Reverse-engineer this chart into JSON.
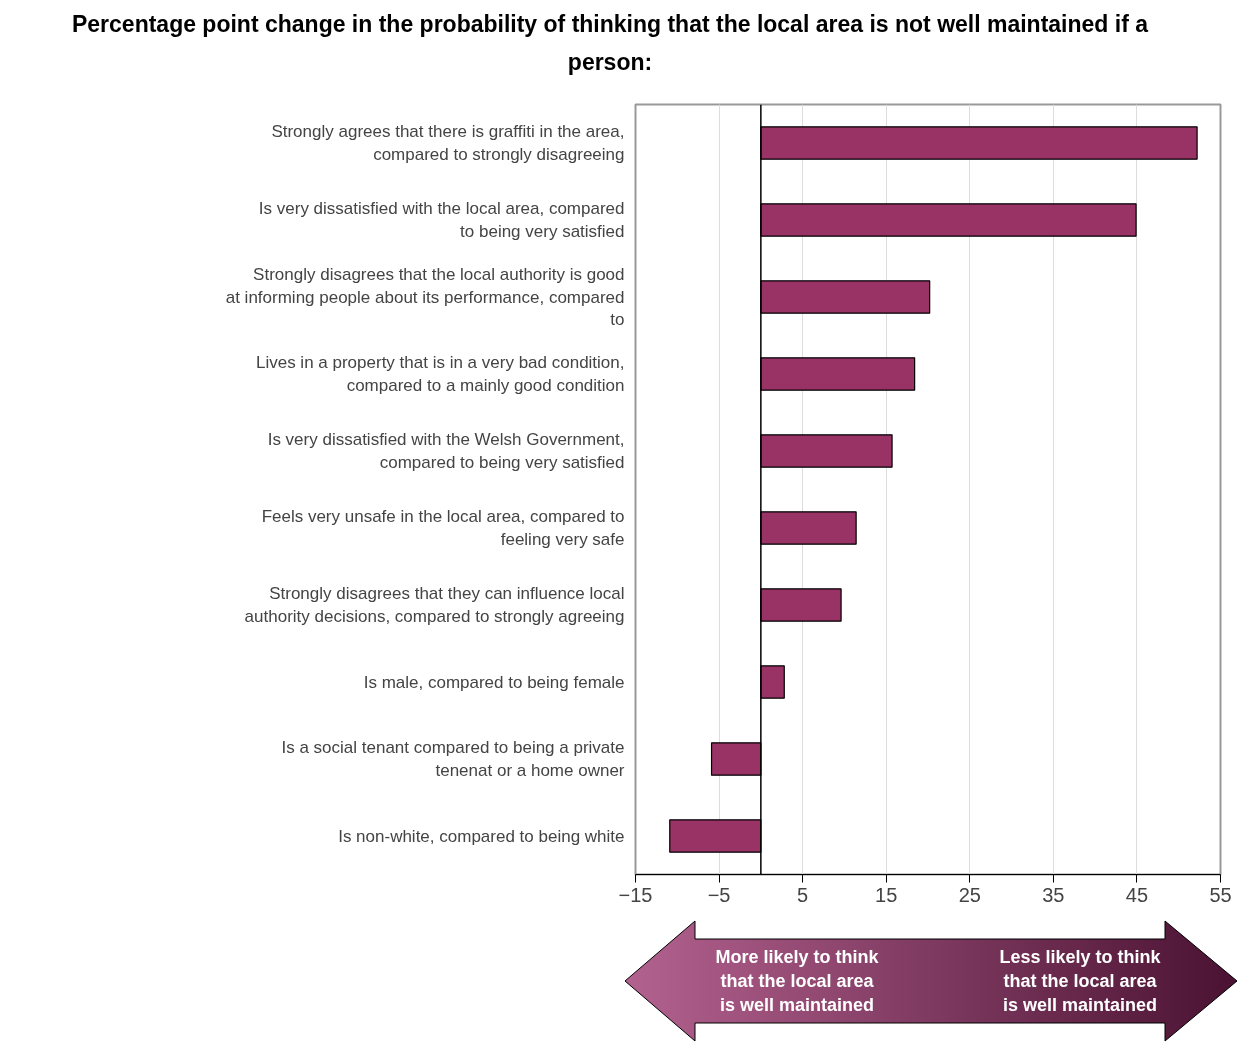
{
  "chart_data": {
    "type": "bar",
    "orientation": "horizontal",
    "title": "Percentage point change in the probability of thinking that the local area is not well maintained if a person:",
    "categories": [
      "Strongly agrees that there is graffiti in the area, compared to strongly disagreeing",
      "Is very dissatisfied with the local area, compared to being very satisfied",
      "Strongly disagrees that the local authority is good at informing people about its performance, compared to",
      "Lives in a property that is in a very bad condition, compared to a mainly good condition",
      "Is very dissatisfied with the Welsh Government, compared to being very satisfied",
      "Feels very unsafe in the local area, compared to feeling very safe",
      "Strongly disagrees that they can influence local authority decisions, compared to strongly agreeing",
      "Is male, compared to being female",
      "Is a social tenant compared to being a private tenenat or a home owner",
      "Is non-white, compared to being white"
    ],
    "values": [
      52.2,
      44.9,
      20.2,
      18.4,
      15.7,
      11.4,
      9.6,
      2.8,
      -5.9,
      -10.9
    ],
    "color": "#993366",
    "xlim": [
      -15,
      55
    ],
    "xticks": [
      -15,
      -5,
      5,
      15,
      25,
      35,
      45,
      55
    ],
    "grid": "x",
    "annotations": [
      "More likely to think that the local area is well maintained",
      "Less likely to think that the local area is well maintained"
    ]
  }
}
